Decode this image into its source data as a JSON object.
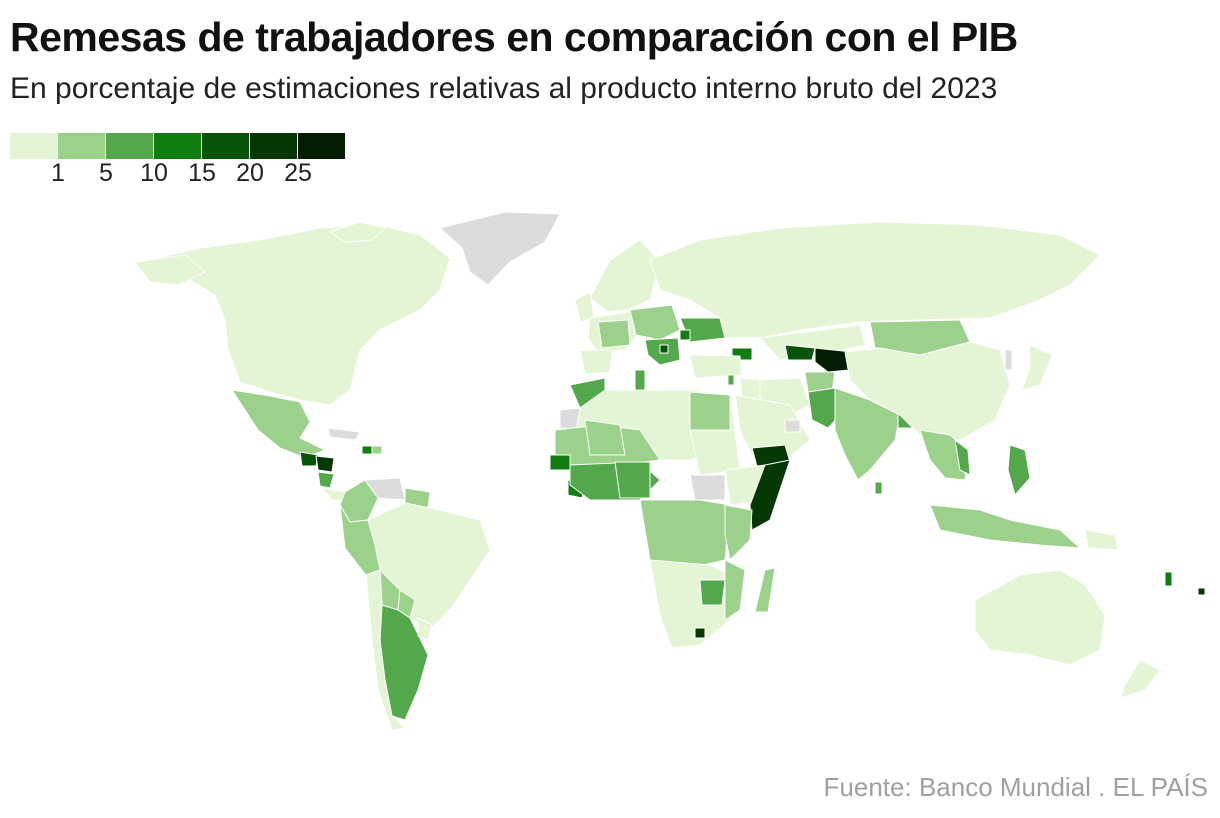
{
  "header": {
    "title": "Remesas de trabajadores en comparación con el PIB",
    "subtitle": "En porcentaje de estimaciones relativas al producto interno bruto del 2023"
  },
  "legend": {
    "colors": [
      "#e3f5d4",
      "#9bd18a",
      "#52a84a",
      "#0f7d0f",
      "#075307",
      "#053805",
      "#021d02"
    ],
    "ticks": [
      "1",
      "5",
      "10",
      "15",
      "20",
      "25"
    ]
  },
  "map": {
    "no_data_color": "#dcdcdc",
    "border_color": "#ffffff"
  },
  "footer": {
    "source": "Fuente: Banco Mundial . EL PAÍS"
  }
}
